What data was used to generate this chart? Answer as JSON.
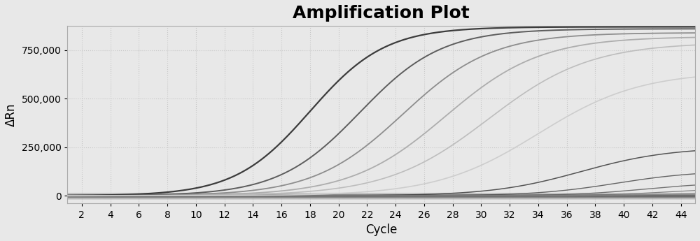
{
  "title": "Amplification Plot",
  "xlabel": "Cycle",
  "ylabel": "ΔRn",
  "xlim": [
    1,
    45
  ],
  "ylim": [
    -40000,
    875000
  ],
  "xticks": [
    2,
    4,
    6,
    8,
    10,
    12,
    14,
    16,
    18,
    20,
    22,
    24,
    26,
    28,
    30,
    32,
    34,
    36,
    38,
    40,
    42,
    44
  ],
  "yticks": [
    0,
    250000,
    500000,
    750000
  ],
  "background_color": "#e8e8e8",
  "plot_bg_color": "#e8e8e8",
  "grid_color": "#c8c8c8",
  "title_fontsize": 18,
  "axis_label_fontsize": 12,
  "tick_fontsize": 10,
  "main_curves": [
    {
      "ct": 18.0,
      "plateau": 870000,
      "color": "#333333",
      "lw": 1.6,
      "slope": 0.38
    },
    {
      "ct": 21.5,
      "plateau": 860000,
      "color": "#555555",
      "lw": 1.4,
      "slope": 0.35
    },
    {
      "ct": 24.5,
      "plateau": 840000,
      "color": "#888888",
      "lw": 1.3,
      "slope": 0.32
    },
    {
      "ct": 27.5,
      "plateau": 820000,
      "color": "#aaaaaa",
      "lw": 1.3,
      "slope": 0.3
    },
    {
      "ct": 30.5,
      "plateau": 790000,
      "color": "#bbbbbb",
      "lw": 1.2,
      "slope": 0.28
    },
    {
      "ct": 34.0,
      "plateau": 640000,
      "color": "#cccccc",
      "lw": 1.2,
      "slope": 0.28
    }
  ],
  "late_curves": [
    {
      "ct": 37.0,
      "plateau": 250000,
      "color": "#444444",
      "lw": 1.1,
      "slope": 0.32
    },
    {
      "ct": 39.5,
      "plateau": 130000,
      "color": "#555555",
      "lw": 1.0,
      "slope": 0.35
    },
    {
      "ct": 41.5,
      "plateau": 70000,
      "color": "#666666",
      "lw": 1.0,
      "slope": 0.38
    },
    {
      "ct": 43.0,
      "plateau": 40000,
      "color": "#777777",
      "lw": 0.9,
      "slope": 0.4
    },
    {
      "ct": 44.5,
      "plateau": 25000,
      "color": "#888888",
      "lw": 0.9,
      "slope": 0.4
    }
  ],
  "flat_curves": [
    {
      "baseline": 1500,
      "noise": 800,
      "color": "#222222",
      "lw": 1.2
    },
    {
      "baseline": 500,
      "noise": 500,
      "color": "#333333",
      "lw": 1.0
    },
    {
      "baseline": -2000,
      "noise": 600,
      "color": "#444444",
      "lw": 1.0
    },
    {
      "baseline": -5000,
      "noise": 700,
      "color": "#555555",
      "lw": 0.9
    },
    {
      "baseline": -8000,
      "noise": 600,
      "color": "#666666",
      "lw": 0.9
    },
    {
      "baseline": -12000,
      "noise": 500,
      "color": "#777777",
      "lw": 0.8
    },
    {
      "baseline": 2500,
      "noise": 600,
      "color": "#333333",
      "lw": 0.9
    },
    {
      "baseline": 4000,
      "noise": 700,
      "color": "#444444",
      "lw": 0.8
    },
    {
      "baseline": 6000,
      "noise": 500,
      "color": "#555555",
      "lw": 0.8
    },
    {
      "baseline": -3000,
      "noise": 400,
      "color": "#666666",
      "lw": 0.8
    },
    {
      "baseline": -6000,
      "noise": 400,
      "color": "#777777",
      "lw": 0.7
    },
    {
      "baseline": 1000,
      "noise": 300,
      "color": "#888888",
      "lw": 0.7
    },
    {
      "baseline": 8000,
      "noise": 400,
      "color": "#999999",
      "lw": 0.7
    },
    {
      "baseline": 10000,
      "noise": 500,
      "color": "#aaaaaa",
      "lw": 0.7
    },
    {
      "baseline": -15000,
      "noise": 300,
      "color": "#bbbbbb",
      "lw": 0.6
    },
    {
      "baseline": 3000,
      "noise": 300,
      "color": "#888888",
      "lw": 0.6
    },
    {
      "baseline": -9000,
      "noise": 300,
      "color": "#999999",
      "lw": 0.6
    },
    {
      "baseline": 12000,
      "noise": 400,
      "color": "#aaaaaa",
      "lw": 0.6
    },
    {
      "baseline": -18000,
      "noise": 300,
      "color": "#bbbbbb",
      "lw": 0.5
    },
    {
      "baseline": 15000,
      "noise": 300,
      "color": "#cccccc",
      "lw": 0.5
    }
  ]
}
